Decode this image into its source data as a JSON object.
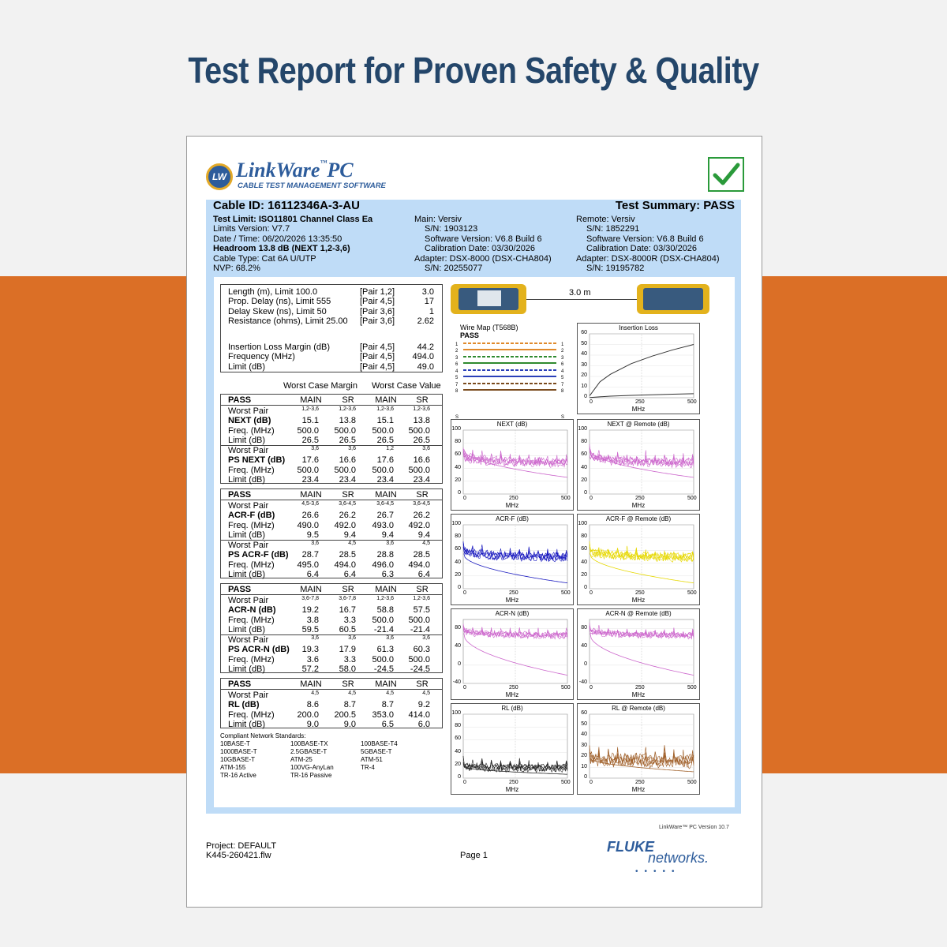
{
  "headline": "Test Report for Proven Safety & Quality",
  "colors": {
    "band": "#db6f26",
    "headline": "#24466a",
    "header_bg": "#bfdcf7",
    "brand": "#2d5c9b",
    "check": "#2a9a3a"
  },
  "logo": {
    "badge": "LW",
    "name": "LinkWare",
    "tm": "™",
    "suffix": "PC",
    "subtitle": "CABLE TEST MANAGEMENT SOFTWARE"
  },
  "header": {
    "cable_id": "Cable ID: 16112346A-3-AU",
    "summary": "Test Summary: PASS",
    "left": [
      "Test Limit: ISO11801 Channel Class Ea",
      "Limits Version: V7.7",
      "Date / Time: 06/20/2026  13:35:50",
      "Headroom 13.8 dB (NEXT 1,2-3,6)",
      "Cable Type: Cat 6A U/UTP",
      "NVP: 68.2%"
    ],
    "main": [
      "Main: Versiv",
      "S/N: 1903123",
      "Software Version: V6.8 Build 6",
      "Calibration Date: 03/30/2026",
      "Adapter: DSX-8000 (DSX-CHA804)",
      "S/N: 20255077"
    ],
    "remote": [
      "Remote: Versiv",
      "S/N: 1852291",
      "Software Version: V6.8 Build 6",
      "Calibration Date: 03/30/2026",
      "Adapter: DSX-8000R (DSX-CHA804)",
      "S/N: 19195782"
    ]
  },
  "summary_box": {
    "rows": [
      {
        "label": "Length (m), Limit 100.0",
        "pair": "[Pair 1,2]",
        "value": "3.0"
      },
      {
        "label": "Prop. Delay (ns), Limit 555",
        "pair": "[Pair 4,5]",
        "value": "17"
      },
      {
        "label": "Delay Skew (ns), Limit 50",
        "pair": "[Pair 3,6]",
        "value": "1"
      },
      {
        "label": "Resistance (ohms), Limit 25.00",
        "pair": "[Pair 3,6]",
        "value": "2.62"
      }
    ],
    "rows2": [
      {
        "label": "Insertion Loss Margin (dB)",
        "pair": "[Pair 4,5]",
        "value": "44.2"
      },
      {
        "label": "Frequency (MHz)",
        "pair": "[Pair 4,5]",
        "value": "494.0"
      },
      {
        "label": "Limit (dB)",
        "pair": "[Pair 4,5]",
        "value": "49.0"
      }
    ]
  },
  "worst_case": {
    "margin": "Worst Case Margin",
    "value": "Worst Case Value"
  },
  "test_blocks": [
    {
      "status": "PASS",
      "cols": [
        "MAIN",
        "SR",
        "MAIN",
        "SR"
      ],
      "groups": [
        {
          "wp": [
            "1,2-3,6",
            "1,2-3,6",
            "1,2-3,6",
            "1,2-3,6"
          ],
          "name": "NEXT (dB)",
          "vals": [
            "15.1",
            "13.8",
            "15.1",
            "13.8"
          ],
          "freq": [
            "500.0",
            "500.0",
            "500.0",
            "500.0"
          ],
          "limit": [
            "26.5",
            "26.5",
            "26.5",
            "26.5"
          ]
        },
        {
          "wp": [
            "3,6",
            "3,6",
            "1,2",
            "3,6"
          ],
          "name": "PS NEXT (dB)",
          "vals": [
            "17.6",
            "16.6",
            "17.6",
            "16.6"
          ],
          "freq": [
            "500.0",
            "500.0",
            "500.0",
            "500.0"
          ],
          "limit": [
            "23.4",
            "23.4",
            "23.4",
            "23.4"
          ]
        }
      ]
    },
    {
      "status": "PASS",
      "cols": [
        "MAIN",
        "SR",
        "MAIN",
        "SR"
      ],
      "groups": [
        {
          "wp": [
            "4,5-3,6",
            "3,6-4,5",
            "3,6-4,5",
            "3,6-4,5"
          ],
          "name": "ACR-F (dB)",
          "vals": [
            "26.6",
            "26.2",
            "26.7",
            "26.2"
          ],
          "freq": [
            "490.0",
            "492.0",
            "493.0",
            "492.0"
          ],
          "limit": [
            "9.5",
            "9.4",
            "9.4",
            "9.4"
          ]
        },
        {
          "wp": [
            "3,6",
            "4,5",
            "3,6",
            "4,5"
          ],
          "name": "PS ACR-F (dB)",
          "vals": [
            "28.7",
            "28.5",
            "28.8",
            "28.5"
          ],
          "freq": [
            "495.0",
            "494.0",
            "496.0",
            "494.0"
          ],
          "limit": [
            "6.4",
            "6.4",
            "6.3",
            "6.4"
          ]
        }
      ]
    },
    {
      "status": "PASS",
      "cols": [
        "MAIN",
        "SR",
        "MAIN",
        "SR"
      ],
      "groups": [
        {
          "wp": [
            "3,6-7,8",
            "3,6-7,8",
            "1,2-3,6",
            "1,2-3,6"
          ],
          "name": "ACR-N (dB)",
          "vals": [
            "19.2",
            "16.7",
            "58.8",
            "57.5"
          ],
          "freq": [
            "3.8",
            "3.3",
            "500.0",
            "500.0"
          ],
          "limit": [
            "59.5",
            "60.5",
            "-21.4",
            "-21.4"
          ]
        },
        {
          "wp": [
            "3,6",
            "3,6",
            "3,6",
            "3,6"
          ],
          "name": "PS ACR-N (dB)",
          "vals": [
            "19.3",
            "17.9",
            "61.3",
            "60.3"
          ],
          "freq": [
            "3.6",
            "3.3",
            "500.0",
            "500.0"
          ],
          "limit": [
            "57.2",
            "58.0",
            "-24.5",
            "-24.5"
          ]
        }
      ]
    },
    {
      "status": "PASS",
      "cols": [
        "MAIN",
        "SR",
        "MAIN",
        "SR"
      ],
      "groups": [
        {
          "wp": [
            "4,5",
            "4,5",
            "4,5",
            "4,5"
          ],
          "name": "RL (dB)",
          "vals": [
            "8.6",
            "8.7",
            "8.7",
            "9.2"
          ],
          "freq": [
            "200.0",
            "200.5",
            "353.0",
            "414.0"
          ],
          "limit": [
            "9.0",
            "9.0",
            "6.5",
            "6.0"
          ]
        }
      ]
    }
  ],
  "row_labels": {
    "worst_pair": "Worst Pair",
    "freq": "Freq. (MHz)",
    "limit": "Limit (dB)"
  },
  "standards": {
    "title": "Compliant Network Standards:",
    "cols": [
      [
        "10BASE-T",
        "1000BASE-T",
        "10GBASE-T",
        "ATM-155",
        "TR-16 Active"
      ],
      [
        "100BASE-TX",
        "2.5GBASE-T",
        "ATM-25",
        "100VG-AnyLan",
        "TR-16 Passive"
      ],
      [
        "100BASE-T4",
        "5GBASE-T",
        "ATM-51",
        "TR-4"
      ]
    ]
  },
  "link_length": "3.0 m",
  "wire_map": {
    "title": "Wire Map (T568B)",
    "status": "PASS",
    "pins": [
      "1",
      "2",
      "3",
      "6",
      "4",
      "5",
      "7",
      "8",
      "S"
    ],
    "colors": [
      "#e08a2c",
      "#e08a2c",
      "#2f8a2f",
      "#2f8a2f",
      "#2a3fb8",
      "#2a3fb8",
      "#7a4a1c",
      "#7a4a1c"
    ]
  },
  "chart_data": [
    {
      "type": "line",
      "title": "Insertion Loss",
      "ylabel": "",
      "xlabel": "MHz",
      "x_ticks": [
        "0",
        "250",
        "500"
      ],
      "y_ticks": [
        "60",
        "50",
        "40",
        "30",
        "20",
        "10",
        "0"
      ],
      "ylim": [
        0,
        60
      ],
      "xlim": [
        0,
        500
      ],
      "color": "#333333",
      "series": [
        {
          "x": [
            1,
            50,
            100,
            200,
            300,
            400,
            500
          ],
          "y": [
            2,
            15,
            22,
            32,
            39,
            45,
            50
          ]
        },
        {
          "x": [
            1,
            100,
            200,
            300,
            400,
            500
          ],
          "y": [
            0.2,
            1.5,
            2.2,
            2.8,
            3.3,
            3.8
          ]
        }
      ]
    },
    {
      "type": "line",
      "title": "NEXT (dB)",
      "xlabel": "MHz",
      "x_ticks": [
        "0",
        "250",
        "500"
      ],
      "y_ticks": [
        "100",
        "80",
        "60",
        "40",
        "20",
        "0"
      ],
      "ylim": [
        0,
        100
      ],
      "xlim": [
        0,
        500
      ],
      "color": "#cc66cc",
      "noisy": true,
      "base": 62,
      "limit_start": 70,
      "limit_end": 26
    },
    {
      "type": "line",
      "title": "NEXT @ Remote (dB)",
      "xlabel": "MHz",
      "x_ticks": [
        "0",
        "250",
        "500"
      ],
      "y_ticks": [
        "100",
        "80",
        "60",
        "40",
        "20",
        "0"
      ],
      "ylim": [
        0,
        100
      ],
      "xlim": [
        0,
        500
      ],
      "color": "#cc66cc",
      "noisy": true,
      "base": 62,
      "limit_start": 70,
      "limit_end": 26
    },
    {
      "type": "line",
      "title": "ACR-F (dB)",
      "xlabel": "MHz",
      "x_ticks": [
        "0",
        "250",
        "500"
      ],
      "y_ticks": [
        "100",
        "80",
        "60",
        "40",
        "20",
        "0"
      ],
      "ylim": [
        0,
        100
      ],
      "xlim": [
        0,
        500
      ],
      "color": "#1a1abf",
      "noisy": true,
      "base": 62,
      "limit_start": 55,
      "limit_end": 9
    },
    {
      "type": "line",
      "title": "ACR-F @ Remote (dB)",
      "xlabel": "MHz",
      "x_ticks": [
        "0",
        "250",
        "500"
      ],
      "y_ticks": [
        "100",
        "80",
        "60",
        "40",
        "20",
        "0"
      ],
      "ylim": [
        0,
        100
      ],
      "xlim": [
        0,
        500
      ],
      "color": "#e6d800",
      "noisy": true,
      "base": 62,
      "limit_start": 55,
      "limit_end": 9
    },
    {
      "type": "line",
      "title": "ACR-N (dB)",
      "xlabel": "MHz",
      "x_ticks": [
        "0",
        "250",
        "500"
      ],
      "y_ticks": [
        "80",
        "40",
        "0",
        "-40"
      ],
      "ylim": [
        -40,
        100
      ],
      "xlim": [
        0,
        500
      ],
      "color": "#cc66cc",
      "noisy": true,
      "base": 78,
      "limit_start": 70,
      "limit_end": -22
    },
    {
      "type": "line",
      "title": "ACR-N @ Remote (dB)",
      "xlabel": "MHz",
      "x_ticks": [
        "0",
        "250",
        "500"
      ],
      "y_ticks": [
        "80",
        "40",
        "0",
        "-40"
      ],
      "ylim": [
        -40,
        100
      ],
      "xlim": [
        0,
        500
      ],
      "color": "#cc66cc",
      "noisy": true,
      "base": 78,
      "limit_start": 70,
      "limit_end": -22
    },
    {
      "type": "line",
      "title": "RL (dB)",
      "xlabel": "MHz",
      "x_ticks": [
        "0",
        "250",
        "500"
      ],
      "y_ticks": [
        "100",
        "80",
        "60",
        "40",
        "20",
        "0"
      ],
      "ylim": [
        0,
        100
      ],
      "xlim": [
        0,
        500
      ],
      "color": "#222222",
      "noisy": true,
      "base": 18,
      "limit_start": 18,
      "limit_end": 6
    },
    {
      "type": "line",
      "title": "RL @ Remote (dB)",
      "xlabel": "MHz",
      "x_ticks": [
        "0",
        "250",
        "500"
      ],
      "y_ticks": [
        "60",
        "50",
        "40",
        "30",
        "20",
        "10",
        "0"
      ],
      "ylim": [
        0,
        60
      ],
      "xlim": [
        0,
        500
      ],
      "color": "#a0602a",
      "noisy": true,
      "base": 18,
      "limit_start": 19,
      "limit_end": 6
    }
  ],
  "footer": {
    "version": "LinkWare™ PC Version 10.7",
    "project": "Project: DEFAULT",
    "file": "K445-260421.flw",
    "page": "Page 1",
    "brand1": "FLUKE",
    "brand2": "networks."
  }
}
